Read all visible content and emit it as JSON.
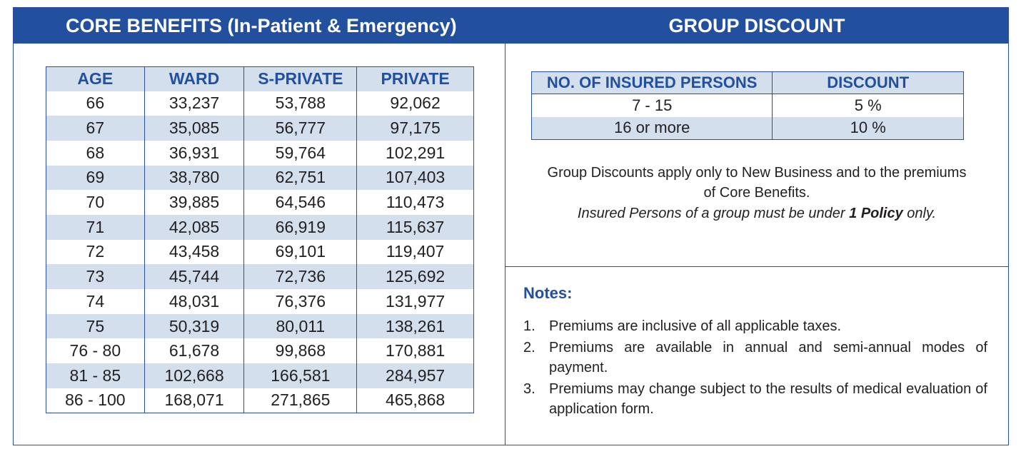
{
  "core_benefits": {
    "title": "CORE BENEFITS (In-Patient & Emergency)",
    "headers": [
      "AGE",
      "WARD",
      "S-PRIVATE",
      "PRIVATE"
    ],
    "rows": [
      [
        "66",
        "33,237",
        "53,788",
        "92,062"
      ],
      [
        "67",
        "35,085",
        "56,777",
        "97,175"
      ],
      [
        "68",
        "36,931",
        "59,764",
        "102,291"
      ],
      [
        "69",
        "38,780",
        "62,751",
        "107,403"
      ],
      [
        "70",
        "39,885",
        "64,546",
        "110,473"
      ],
      [
        "71",
        "42,085",
        "66,919",
        "115,637"
      ],
      [
        "72",
        "43,458",
        "69,101",
        "119,407"
      ],
      [
        "73",
        "45,744",
        "72,736",
        "125,692"
      ],
      [
        "74",
        "48,031",
        "76,376",
        "131,977"
      ],
      [
        "75",
        "50,319",
        "80,011",
        "138,261"
      ],
      [
        "76 - 80",
        "61,678",
        "99,868",
        "170,881"
      ],
      [
        "81 - 85",
        "102,668",
        "166,581",
        "284,957"
      ],
      [
        "86 - 100",
        "168,071",
        "271,865",
        "465,868"
      ]
    ]
  },
  "group_discount": {
    "title": "GROUP DISCOUNT",
    "headers": [
      "NO. OF INSURED PERSONS",
      "DISCOUNT"
    ],
    "rows": [
      [
        "7 - 15",
        "5 %"
      ],
      [
        "16 or more",
        "10 %"
      ]
    ],
    "note_line_1": "Group Discounts apply only to New Business and to the premiums",
    "note_line_2": "of Core Benefits.",
    "note_line_3_before": "Insured Persons of a group must be under ",
    "note_line_3_bold": "1 Policy",
    "note_line_3_after": " only."
  },
  "notes": {
    "title": "Notes:",
    "items": [
      {
        "number": "1.",
        "text": "Premiums are inclusive of all applicable taxes."
      },
      {
        "number": "2.",
        "text": "Premiums are available in annual and semi-annual modes of payment."
      },
      {
        "number": "3.",
        "text": "Premiums may change subject to the results of medical evaluation of application form."
      }
    ]
  },
  "colors": {
    "banner_blue": "#23509e",
    "row_shade": "#d4dfee",
    "border_blue": "#2a4f9e"
  }
}
